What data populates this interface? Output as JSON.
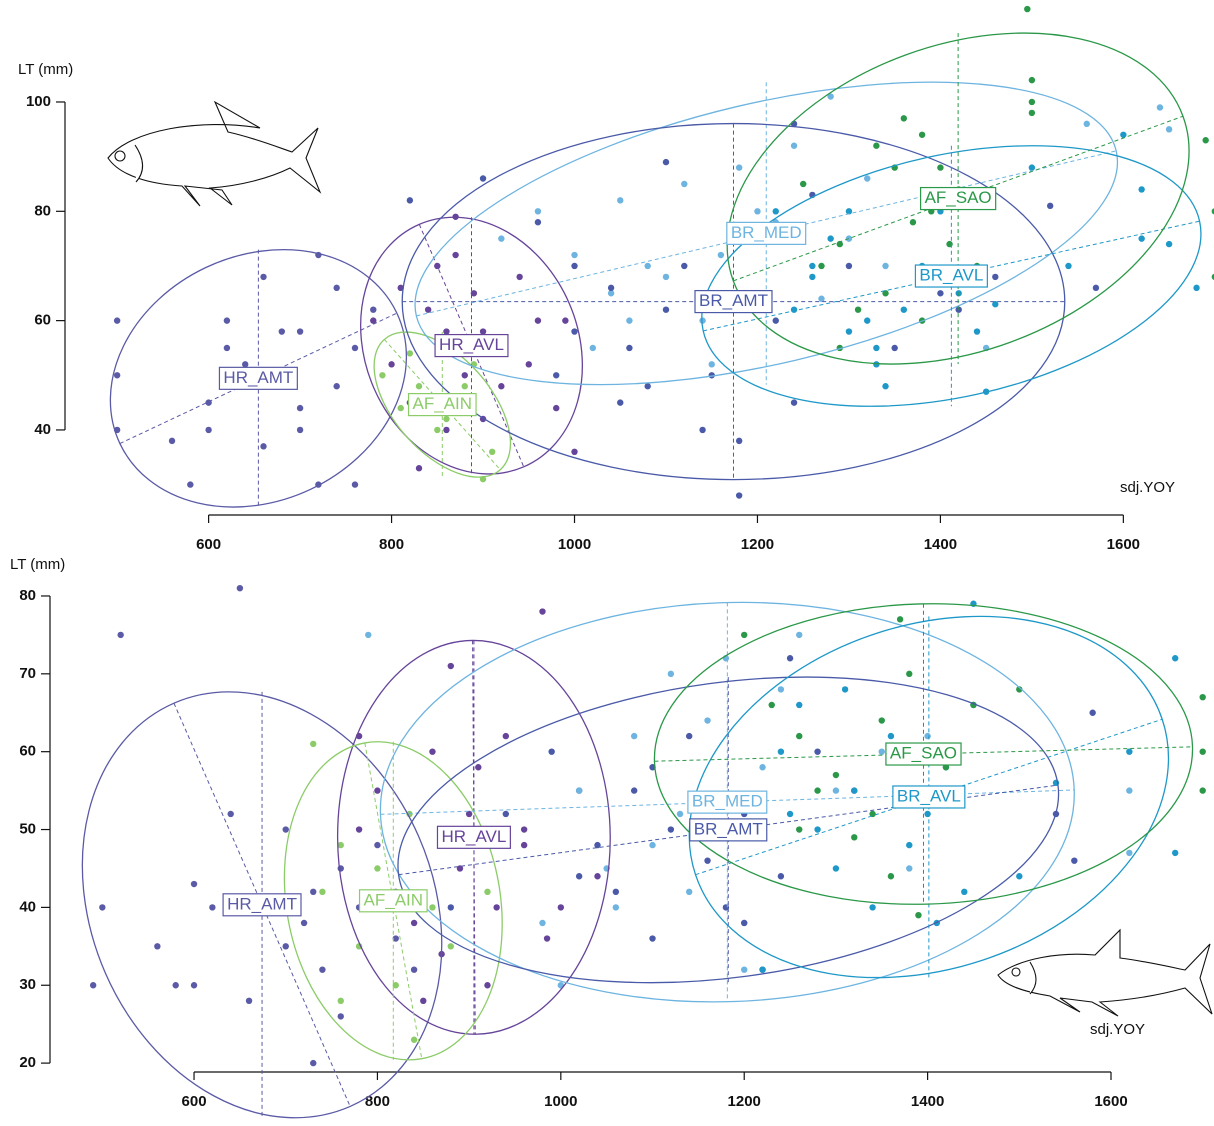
{
  "chart_data": [
    {
      "type": "scatter",
      "x_label": "sdj.YOY",
      "y_label": "LT (mm)",
      "xlim": [
        490,
        1698
      ],
      "ylim": [
        27,
        118
      ],
      "xticks": [
        600,
        800,
        1000,
        1200,
        1400,
        1600
      ],
      "yticks": [
        40,
        60,
        80,
        100
      ],
      "series": [
        {
          "name": "HR_AMT",
          "color": "#5a5aa6",
          "x": [
            500,
            500,
            500,
            580,
            600,
            620,
            640,
            660,
            660,
            680,
            700,
            720,
            720,
            740,
            760,
            780,
            600,
            640,
            700,
            740,
            560,
            620,
            680,
            760,
            700
          ],
          "values": [
            60,
            50,
            40,
            30,
            45,
            55,
            48,
            68,
            37,
            58,
            40,
            72,
            30,
            48,
            55,
            62,
            40,
            52,
            44,
            66,
            38,
            60,
            50,
            30,
            58
          ]
        },
        {
          "name": "HR_AVL",
          "color": "#66449a",
          "x": [
            780,
            800,
            820,
            840,
            850,
            860,
            870,
            880,
            890,
            900,
            910,
            920,
            940,
            960,
            980,
            1000,
            830,
            870,
            900,
            950,
            860,
            810,
            990
          ],
          "values": [
            60,
            52,
            45,
            62,
            70,
            58,
            79,
            50,
            65,
            42,
            55,
            48,
            68,
            60,
            44,
            36,
            33,
            72,
            58,
            52,
            40,
            66,
            60
          ]
        },
        {
          "name": "AF_AIN",
          "color": "#8ccc68",
          "x": [
            790,
            810,
            830,
            850,
            870,
            890,
            910,
            860,
            820,
            900,
            880
          ],
          "values": [
            50,
            44,
            48,
            40,
            46,
            52,
            36,
            42,
            54,
            31,
            48
          ]
        },
        {
          "name": "BR_MED",
          "color": "#6db4e0",
          "x": [
            920,
            960,
            1000,
            1040,
            1060,
            1100,
            1120,
            1140,
            1160,
            1200,
            1240,
            1280,
            1300,
            1150,
            1080,
            1020,
            1180,
            1270,
            1340,
            1450,
            1560,
            1640,
            1650,
            1050,
            1220,
            1320
          ],
          "values": [
            75,
            80,
            72,
            65,
            60,
            68,
            85,
            60,
            72,
            80,
            92,
            101,
            75,
            52,
            70,
            55,
            88,
            64,
            70,
            55,
            96,
            99,
            95,
            82,
            78,
            86
          ]
        },
        {
          "name": "BR_AMT",
          "color": "#4a5aa8",
          "x": [
            820,
            900,
            960,
            1000,
            1040,
            1060,
            1080,
            1100,
            1120,
            1150,
            1180,
            1200,
            1220,
            1240,
            1260,
            1300,
            1350,
            1400,
            1420,
            1460,
            1520,
            1570,
            1240,
            1140,
            1180,
            1050,
            1000,
            980,
            1100
          ],
          "values": [
            82,
            86,
            78,
            58,
            66,
            55,
            48,
            62,
            70,
            50,
            28,
            75,
            60,
            45,
            83,
            70,
            55,
            65,
            62,
            68,
            81,
            66,
            96,
            40,
            38,
            45,
            70,
            50,
            89
          ]
        },
        {
          "name": "BR_AVL",
          "color": "#1e98c8",
          "x": [
            1220,
            1240,
            1260,
            1280,
            1300,
            1320,
            1330,
            1340,
            1360,
            1380,
            1400,
            1420,
            1440,
            1450,
            1500,
            1540,
            1600,
            1620,
            1650,
            1680,
            1300,
            1260,
            1330,
            1460,
            1620
          ],
          "values": [
            80,
            62,
            70,
            75,
            58,
            60,
            55,
            48,
            62,
            70,
            80,
            65,
            58,
            47,
            88,
            70,
            94,
            84,
            74,
            66,
            80,
            68,
            52,
            63,
            75
          ]
        },
        {
          "name": "AF_SAO",
          "color": "#2a9848",
          "x": [
            1250,
            1270,
            1290,
            1310,
            1330,
            1350,
            1360,
            1370,
            1380,
            1390,
            1400,
            1410,
            1420,
            1440,
            1500,
            1500,
            1500,
            1700,
            1700,
            1690,
            1340,
            1290,
            1380,
            1495
          ],
          "values": [
            85,
            70,
            74,
            62,
            92,
            88,
            97,
            78,
            94,
            80,
            88,
            74,
            84,
            70,
            104,
            98,
            100,
            80,
            68,
            93,
            65,
            55,
            60,
            117
          ]
        }
      ]
    },
    {
      "type": "scatter",
      "x_label": "sdj.YOY",
      "y_label": "LT (mm)",
      "xlim": [
        480,
        1700
      ],
      "ylim": [
        19.5,
        82
      ],
      "xticks": [
        600,
        800,
        1000,
        1200,
        1400,
        1600
      ],
      "yticks": [
        20,
        30,
        40,
        50,
        60,
        70,
        80
      ],
      "series": [
        {
          "name": "HR_AMT",
          "color": "#5a5aa6",
          "x": [
            490,
            500,
            520,
            560,
            580,
            600,
            620,
            640,
            650,
            660,
            680,
            700,
            720,
            730,
            740,
            760,
            780,
            800,
            820,
            840,
            700,
            600,
            760,
            730
          ],
          "values": [
            30,
            40,
            75,
            35,
            30,
            43,
            40,
            52,
            81,
            28,
            40,
            35,
            38,
            20,
            32,
            45,
            40,
            48,
            36,
            32,
            50,
            30,
            26,
            42
          ]
        },
        {
          "name": "HR_AVL",
          "color": "#66449a",
          "x": [
            780,
            800,
            820,
            840,
            860,
            880,
            890,
            900,
            920,
            940,
            960,
            980,
            1000,
            1020,
            1040,
            850,
            870,
            910,
            985,
            930,
            960,
            780
          ],
          "values": [
            50,
            55,
            42,
            38,
            60,
            71,
            45,
            52,
            30,
            62,
            48,
            78,
            40,
            55,
            44,
            28,
            34,
            58,
            36,
            40,
            50,
            62
          ]
        },
        {
          "name": "AF_AIN",
          "color": "#8ccc68",
          "x": [
            730,
            740,
            760,
            780,
            800,
            820,
            840,
            860,
            880,
            900,
            920,
            760,
            835
          ],
          "values": [
            61,
            42,
            48,
            35,
            45,
            30,
            23,
            40,
            35,
            50,
            42,
            28,
            52
          ]
        },
        {
          "name": "BR_MED",
          "color": "#6db4e0",
          "x": [
            790,
            940,
            980,
            1000,
            1020,
            1050,
            1080,
            1100,
            1120,
            1140,
            1160,
            1200,
            1220,
            1260,
            1300,
            1350,
            1380,
            1400,
            1620,
            1620,
            1200,
            1180,
            1060,
            1240,
            1130
          ],
          "values": [
            75,
            50,
            38,
            30,
            55,
            45,
            62,
            48,
            70,
            42,
            64,
            32,
            58,
            75,
            55,
            60,
            45,
            62,
            55,
            47,
            38,
            72,
            40,
            68,
            52
          ]
        },
        {
          "name": "BR_AMT",
          "color": "#4a5aa8",
          "x": [
            880,
            940,
            990,
            1020,
            1040,
            1080,
            1100,
            1120,
            1140,
            1160,
            1180,
            1200,
            1220,
            1240,
            1280,
            1320,
            1200,
            1100,
            1060,
            1250,
            1540,
            1560,
            1580
          ],
          "values": [
            40,
            52,
            60,
            44,
            48,
            55,
            36,
            50,
            62,
            46,
            40,
            52,
            32,
            44,
            60,
            55,
            38,
            58,
            42,
            72,
            52,
            46,
            65
          ]
        },
        {
          "name": "BR_AVL",
          "color": "#1e98c8",
          "x": [
            1220,
            1240,
            1260,
            1280,
            1300,
            1320,
            1340,
            1360,
            1380,
            1400,
            1420,
            1440,
            1450,
            1500,
            1540,
            1620,
            1670,
            1670,
            1450,
            1250,
            1310,
            1410
          ],
          "values": [
            32,
            60,
            66,
            50,
            45,
            55,
            40,
            62,
            48,
            52,
            58,
            42,
            79,
            44,
            56,
            60,
            72,
            47,
            66,
            52,
            68,
            38
          ]
        },
        {
          "name": "AF_SAO",
          "color": "#2a9848",
          "x": [
            1200,
            1230,
            1260,
            1280,
            1300,
            1320,
            1340,
            1350,
            1370,
            1380,
            1400,
            1420,
            1450,
            1500,
            1700,
            1700,
            1700,
            1390,
            1260,
            1360
          ],
          "values": [
            75,
            66,
            62,
            55,
            57,
            49,
            52,
            64,
            77,
            70,
            60,
            58,
            66,
            68,
            67,
            60,
            55,
            39,
            50,
            44
          ]
        }
      ]
    }
  ]
}
